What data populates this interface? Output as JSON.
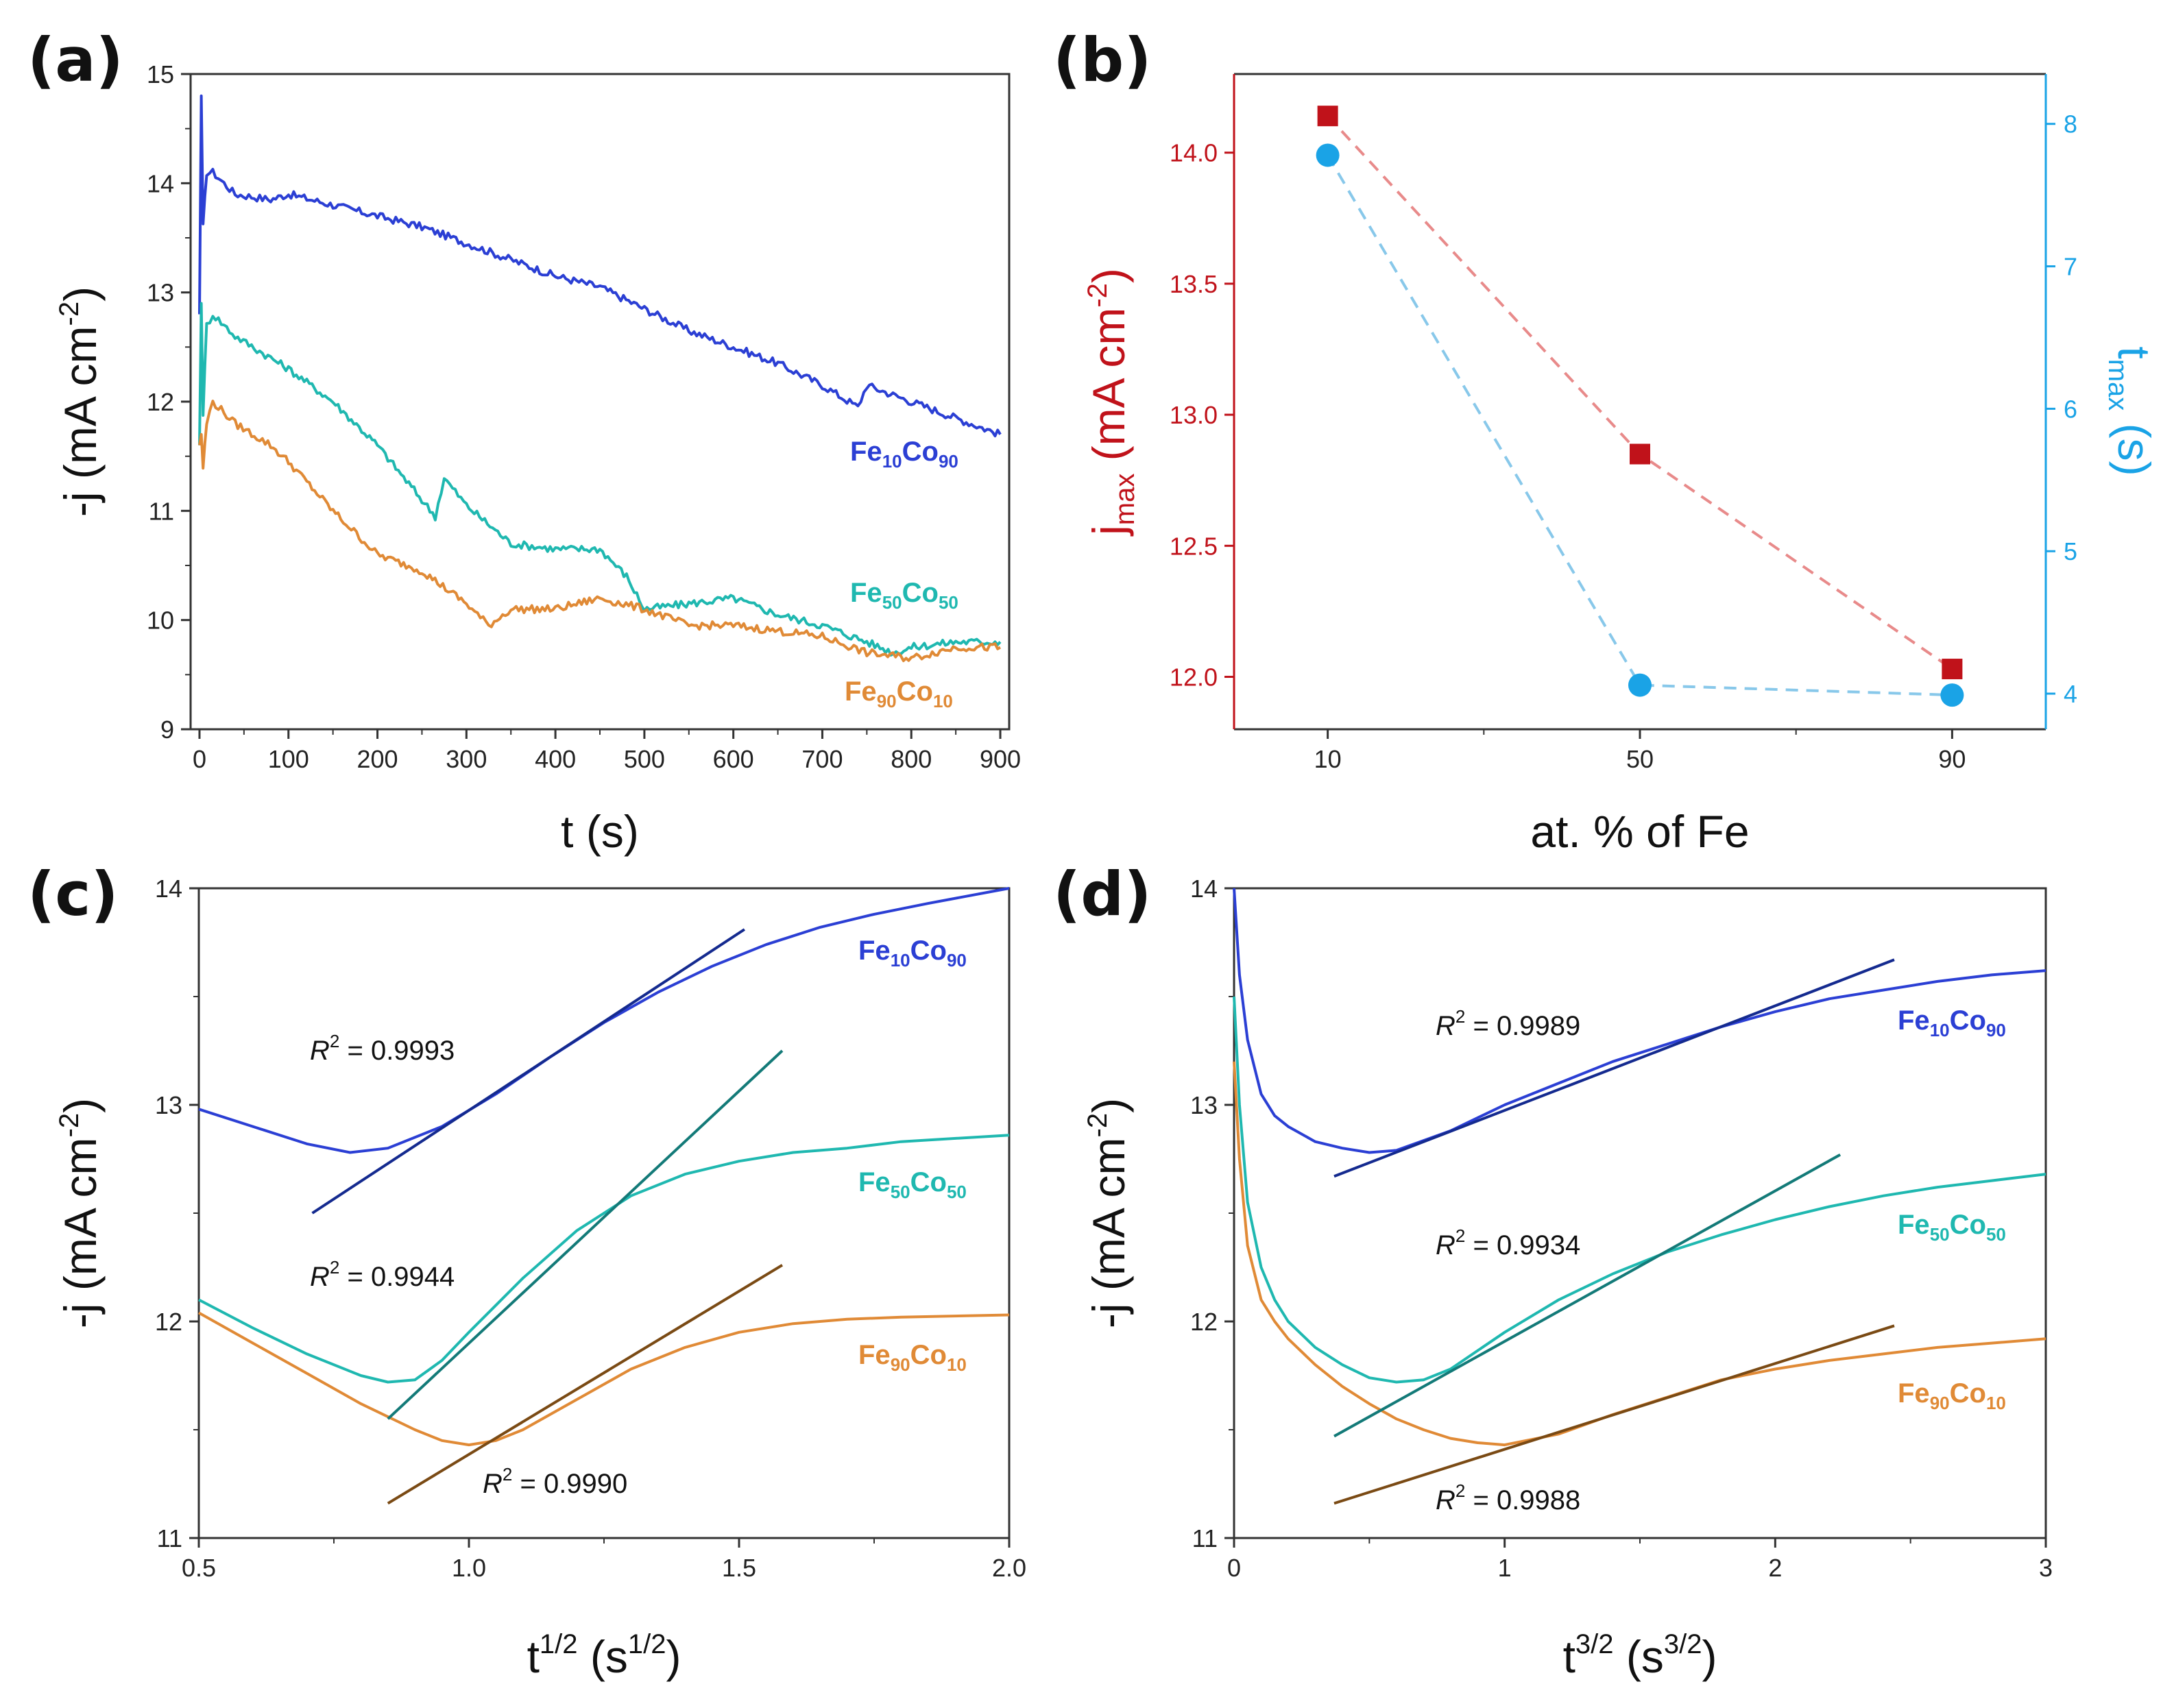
{
  "figure": {
    "panel_labels": [
      "(a)",
      "(b)",
      "(c)",
      "(d)"
    ]
  },
  "colors": {
    "fe10co90": "#2b3fd4",
    "fe50co50": "#1fb8b0",
    "fe90co10": "#e08a36",
    "fit_fe10co90": "#142a8f",
    "fit_fe50co50": "#137a78",
    "fit_fe90co10": "#7a4a14",
    "jmax": "#c0121a",
    "tmax": "#1aa3e6",
    "jmax_line": "#e88a8a",
    "tmax_line": "#88c8ea"
  },
  "series_names": [
    {
      "base1": "Fe",
      "sub1": "10",
      "base2": "Co",
      "sub2": "90"
    },
    {
      "base1": "Fe",
      "sub1": "50",
      "base2": "Co",
      "sub2": "50"
    },
    {
      "base1": "Fe",
      "sub1": "90",
      "base2": "Co",
      "sub2": "10"
    }
  ],
  "chart_data": [
    {
      "panel": "(a)",
      "type": "line",
      "title": "",
      "xlabel": "t (s)",
      "ylabel": {
        "text": "-j (mA cm",
        "sup": "-2",
        "close": ")"
      },
      "xlim": [
        -10,
        910
      ],
      "ylim": [
        9,
        15
      ],
      "xticks": [
        0,
        100,
        200,
        300,
        400,
        500,
        600,
        700,
        800,
        900
      ],
      "yticks": [
        9,
        10,
        11,
        12,
        13,
        14,
        15
      ],
      "series": [
        {
          "name": "Fe10Co90",
          "x": [
            0,
            2,
            4,
            8,
            15,
            40,
            80,
            100,
            150,
            200,
            250,
            300,
            350,
            400,
            450,
            500,
            550,
            600,
            650,
            700,
            740,
            750,
            800,
            850,
            900
          ],
          "y": [
            12.8,
            14.8,
            13.6,
            14.1,
            14.1,
            13.9,
            13.85,
            13.9,
            13.8,
            13.7,
            13.6,
            13.45,
            13.3,
            13.15,
            13.05,
            12.85,
            12.65,
            12.5,
            12.35,
            12.15,
            11.95,
            12.15,
            12.0,
            11.85,
            11.7
          ]
        },
        {
          "name": "Fe50Co50",
          "x": [
            0,
            2,
            4,
            8,
            15,
            40,
            80,
            100,
            150,
            200,
            250,
            265,
            275,
            300,
            350,
            400,
            450,
            480,
            500,
            550,
            600,
            650,
            700,
            750,
            780,
            800,
            850,
            900
          ],
          "y": [
            11.6,
            12.9,
            11.9,
            12.7,
            12.8,
            12.6,
            12.4,
            12.3,
            12.0,
            11.6,
            11.1,
            10.95,
            11.3,
            11.05,
            10.7,
            10.65,
            10.65,
            10.4,
            10.1,
            10.15,
            10.2,
            10.05,
            9.95,
            9.8,
            9.7,
            9.75,
            9.8,
            9.8
          ]
        },
        {
          "name": "Fe90Co10",
          "x": [
            0,
            2,
            4,
            8,
            15,
            40,
            80,
            100,
            150,
            200,
            250,
            300,
            325,
            350,
            400,
            450,
            500,
            550,
            600,
            650,
            700,
            750,
            800,
            850,
            900
          ],
          "y": [
            11.6,
            11.7,
            11.4,
            11.8,
            12.0,
            11.8,
            11.6,
            11.45,
            11.0,
            10.6,
            10.45,
            10.15,
            9.95,
            10.1,
            10.1,
            10.2,
            10.1,
            9.95,
            9.95,
            9.9,
            9.85,
            9.7,
            9.65,
            9.75,
            9.75
          ]
        }
      ]
    },
    {
      "panel": "(b)",
      "type": "scatter",
      "title": "",
      "xlabel": "at. % of Fe",
      "ylabel_left": {
        "base": "j",
        "sub": "max",
        "rest": " (mA cm",
        "sup": "-2",
        "close": ")"
      },
      "ylabel_right": {
        "base": "t",
        "sub": "max",
        "rest": " (s)"
      },
      "xlim": [
        -2,
        102
      ],
      "ylim_left": [
        11.8,
        14.3
      ],
      "ylim_right": [
        3.75,
        8.35
      ],
      "xticks": [
        10,
        50,
        90
      ],
      "yticks_left": [
        "12.0",
        "12.5",
        "13.0",
        "13.5",
        "14.0"
      ],
      "yticks_right": [
        4,
        5,
        6,
        7,
        8
      ],
      "series": [
        {
          "name": "j_max",
          "axis": "left",
          "marker": "square",
          "x": [
            10,
            50,
            90
          ],
          "y": [
            14.14,
            12.85,
            12.03
          ]
        },
        {
          "name": "t_max",
          "axis": "right",
          "marker": "circle",
          "x": [
            10,
            50,
            90
          ],
          "y": [
            7.78,
            4.06,
            3.99
          ]
        }
      ]
    },
    {
      "panel": "(c)",
      "type": "line",
      "title": "",
      "xlabel": {
        "base": "t",
        "sup": "1/2",
        "rest": " (s",
        "sup2": "1/2",
        "close": ")"
      },
      "ylabel": {
        "text": "-j (mA cm",
        "sup": "-2",
        "close": ")"
      },
      "xlim": [
        0.5,
        2.0
      ],
      "ylim": [
        11,
        14
      ],
      "xticks": [
        "0.5",
        "1.0",
        "1.5",
        "2.0"
      ],
      "yticks": [
        11,
        12,
        13,
        14
      ],
      "series": [
        {
          "name": "Fe10Co90",
          "x": [
            0.5,
            0.6,
            0.7,
            0.78,
            0.85,
            0.95,
            1.05,
            1.15,
            1.25,
            1.35,
            1.45,
            1.55,
            1.65,
            1.75,
            1.85,
            2.0
          ],
          "y": [
            12.98,
            12.9,
            12.82,
            12.78,
            12.8,
            12.9,
            13.05,
            13.22,
            13.38,
            13.52,
            13.64,
            13.74,
            13.82,
            13.88,
            13.93,
            14.0
          ]
        },
        {
          "name": "Fe50Co50",
          "x": [
            0.5,
            0.6,
            0.7,
            0.8,
            0.85,
            0.9,
            0.95,
            1.0,
            1.1,
            1.2,
            1.3,
            1.4,
            1.5,
            1.6,
            1.7,
            1.8,
            2.0
          ],
          "y": [
            12.1,
            11.97,
            11.85,
            11.75,
            11.72,
            11.73,
            11.82,
            11.95,
            12.2,
            12.42,
            12.58,
            12.68,
            12.74,
            12.78,
            12.8,
            12.83,
            12.86
          ]
        },
        {
          "name": "Fe90Co10",
          "x": [
            0.5,
            0.6,
            0.7,
            0.8,
            0.9,
            0.95,
            1.0,
            1.05,
            1.1,
            1.2,
            1.3,
            1.4,
            1.5,
            1.6,
            1.7,
            1.8,
            2.0
          ],
          "y": [
            12.04,
            11.9,
            11.76,
            11.62,
            11.5,
            11.45,
            11.43,
            11.45,
            11.5,
            11.64,
            11.78,
            11.88,
            11.95,
            11.99,
            12.01,
            12.02,
            12.03
          ]
        }
      ],
      "fits": [
        {
          "name": "Fe10Co90 fit",
          "x": [
            0.71,
            1.51
          ],
          "y": [
            12.5,
            13.81
          ],
          "r2": "0.9993"
        },
        {
          "name": "Fe50Co50 fit",
          "x": [
            0.85,
            1.58
          ],
          "y": [
            11.55,
            13.25
          ],
          "r2": "0.9944"
        },
        {
          "name": "Fe90Co10 fit",
          "x": [
            0.85,
            1.58
          ],
          "y": [
            11.16,
            12.26
          ],
          "r2": "0.9990"
        }
      ]
    },
    {
      "panel": "(d)",
      "type": "line",
      "title": "",
      "xlabel": {
        "base": "t",
        "sup": "3/2",
        "rest": " (s",
        "sup2": "3/2",
        "close": ")"
      },
      "ylabel": {
        "text": "-j (mA cm",
        "sup": "-2",
        "close": ")"
      },
      "xlim": [
        0,
        3
      ],
      "ylim": [
        11,
        14
      ],
      "xticks": [
        0,
        1,
        2,
        3
      ],
      "yticks": [
        11,
        12,
        13,
        14
      ],
      "series": [
        {
          "name": "Fe10Co90",
          "x": [
            0.0,
            0.02,
            0.05,
            0.1,
            0.15,
            0.2,
            0.3,
            0.4,
            0.5,
            0.6,
            0.8,
            1.0,
            1.2,
            1.4,
            1.6,
            1.8,
            2.0,
            2.2,
            2.4,
            2.6,
            2.8,
            3.0
          ],
          "y": [
            14.0,
            13.6,
            13.3,
            13.05,
            12.95,
            12.9,
            12.83,
            12.8,
            12.78,
            12.79,
            12.88,
            13.0,
            13.1,
            13.2,
            13.28,
            13.36,
            13.43,
            13.49,
            13.53,
            13.57,
            13.6,
            13.62
          ]
        },
        {
          "name": "Fe50Co50",
          "x": [
            0.0,
            0.02,
            0.05,
            0.1,
            0.15,
            0.2,
            0.3,
            0.4,
            0.5,
            0.6,
            0.7,
            0.8,
            1.0,
            1.2,
            1.4,
            1.6,
            1.8,
            2.0,
            2.2,
            2.4,
            2.6,
            2.8,
            3.0
          ],
          "y": [
            13.5,
            13.0,
            12.55,
            12.25,
            12.1,
            12.0,
            11.88,
            11.8,
            11.74,
            11.72,
            11.73,
            11.78,
            11.95,
            12.1,
            12.22,
            12.32,
            12.4,
            12.47,
            12.53,
            12.58,
            12.62,
            12.65,
            12.68
          ]
        },
        {
          "name": "Fe90Co10",
          "x": [
            0.0,
            0.02,
            0.05,
            0.1,
            0.15,
            0.2,
            0.3,
            0.4,
            0.5,
            0.6,
            0.7,
            0.8,
            0.9,
            1.0,
            1.2,
            1.4,
            1.6,
            1.8,
            2.0,
            2.2,
            2.4,
            2.6,
            2.8,
            3.0
          ],
          "y": [
            13.2,
            12.75,
            12.35,
            12.1,
            12.0,
            11.92,
            11.8,
            11.7,
            11.62,
            11.55,
            11.5,
            11.46,
            11.44,
            11.43,
            11.48,
            11.57,
            11.65,
            11.73,
            11.78,
            11.82,
            11.85,
            11.88,
            11.9,
            11.92
          ]
        }
      ],
      "fits": [
        {
          "name": "Fe10Co90 fit",
          "x": [
            0.37,
            2.44
          ],
          "y": [
            12.67,
            13.67
          ],
          "r2": "0.9989"
        },
        {
          "name": "Fe50Co50 fit",
          "x": [
            0.37,
            2.24
          ],
          "y": [
            11.47,
            12.77
          ],
          "r2": "0.9934"
        },
        {
          "name": "Fe90Co10 fit",
          "x": [
            0.37,
            2.44
          ],
          "y": [
            11.16,
            11.98
          ],
          "r2": "0.9988"
        }
      ]
    }
  ]
}
